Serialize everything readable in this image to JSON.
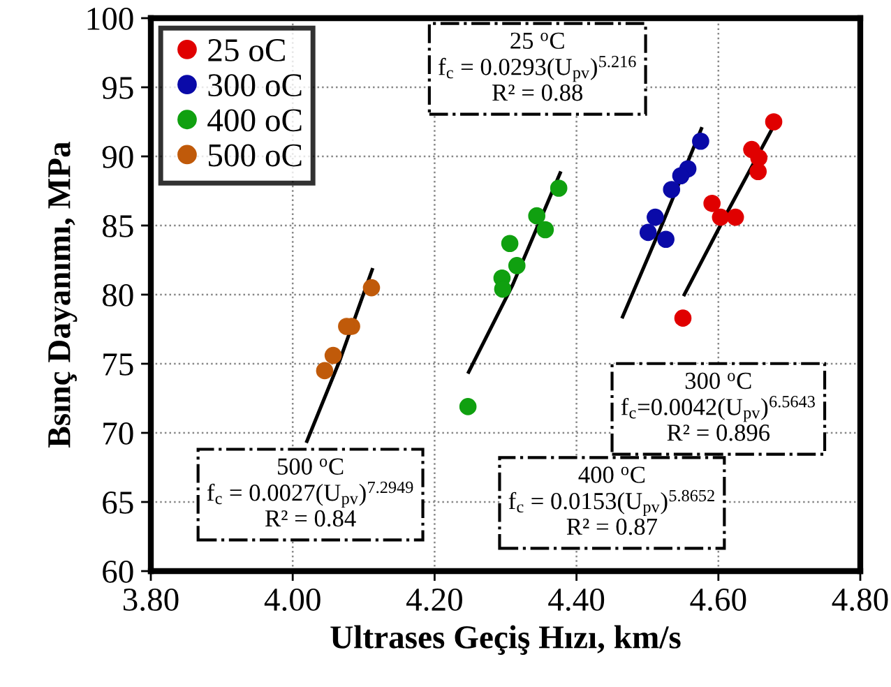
{
  "chart_data": {
    "type": "scatter",
    "xlabel": "Ultrases Geçiş Hızı, km/s",
    "ylabel": "Bsınç Dayanımı, MPa",
    "xlim": [
      3.8,
      4.8
    ],
    "xticks": [
      {
        "value": 3.8,
        "label": "3.80"
      },
      {
        "value": 4.0,
        "label": "4.00"
      },
      {
        "value": 4.2,
        "label": "4.20"
      },
      {
        "value": 4.4,
        "label": "4.40"
      },
      {
        "value": 4.6,
        "label": "4.60"
      },
      {
        "value": 4.8,
        "label": "4.80"
      }
    ],
    "ylim": [
      60,
      100
    ],
    "yticks": [
      60,
      65,
      70,
      75,
      80,
      85,
      90,
      95,
      100
    ],
    "grid": true,
    "legend": "top left",
    "marker": "circle",
    "series": [
      {
        "name": "25 oC",
        "color": "#e00000",
        "x": [
          4.678,
          4.647,
          4.657,
          4.656,
          4.591,
          4.603,
          4.624,
          4.55
        ],
        "values": [
          92.5,
          90.5,
          89.9,
          88.9,
          86.6,
          85.6,
          85.6,
          78.3
        ]
      },
      {
        "name": "300 oC",
        "color": "#0a0aa8",
        "x": [
          4.575,
          4.557,
          4.547,
          4.534,
          4.511,
          4.501,
          4.526
        ],
        "values": [
          91.1,
          89.1,
          88.6,
          87.6,
          85.6,
          84.5,
          84.0
        ]
      },
      {
        "name": "400 oC",
        "color": "#10a010",
        "x": [
          4.375,
          4.344,
          4.356,
          4.306,
          4.316,
          4.295,
          4.296,
          4.247
        ],
        "values": [
          87.7,
          85.7,
          84.7,
          83.7,
          82.1,
          81.2,
          80.4,
          71.9
        ]
      },
      {
        "name": "500 oC",
        "color": "#c05a0a",
        "x": [
          4.111,
          4.083,
          4.076,
          4.057,
          4.045
        ],
        "values": [
          80.5,
          77.7,
          77.7,
          75.6,
          74.5
        ]
      },
      {
        "type": "line",
        "marker": "none",
        "color": "#000000",
        "x": [
          4.552,
          4.615,
          4.679
        ],
        "values": [
          80.0,
          86.2,
          92.3
        ]
      },
      {
        "type": "line",
        "marker": "none",
        "color": "#000000",
        "x": [
          4.465,
          4.52,
          4.576
        ],
        "values": [
          78.4,
          85.0,
          92.0
        ]
      },
      {
        "type": "line",
        "marker": "none",
        "color": "#000000",
        "x": [
          4.248,
          4.31,
          4.377
        ],
        "values": [
          74.4,
          80.7,
          88.8
        ]
      },
      {
        "type": "line",
        "marker": "none",
        "color": "#000000",
        "x": [
          4.02,
          4.066,
          4.112
        ],
        "values": [
          69.4,
          75.2,
          81.8
        ]
      }
    ],
    "annotations": [
      "25 $^{o}$C\nf$_{c}$ = 0.0293(U$_{pv}$)$^{5.216}$\nR² = 0.88",
      "300 $^{o}$C\nf$_{c}$=0.0042(U$_{pv}$)$^{6.5643}$\nR² = 0.896",
      "400 $^{o}$C\nf$_{c}$ = 0.0153(U$_{pv}$)$^{5.8652}$\nR² = 0.87",
      "500 $^{o}$C\nf$_{c}$ = 0.0027(U$_{pv}$)$^{7.2949}$\nR² = 0.84"
    ]
  }
}
